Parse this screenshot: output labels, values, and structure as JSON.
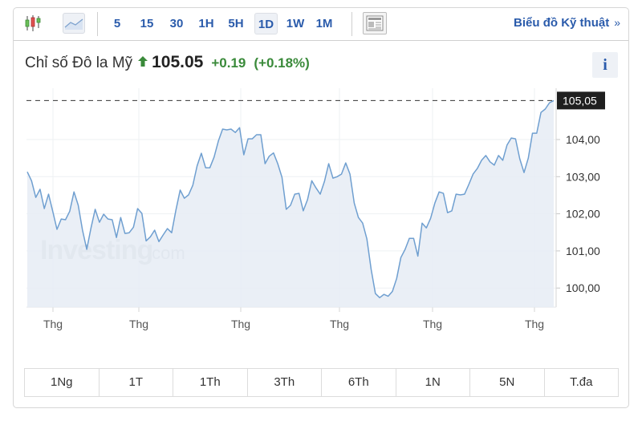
{
  "toolbar": {
    "chart_types": [
      {
        "name": "candlestick-icon",
        "active": false
      },
      {
        "name": "area-chart-icon",
        "active": true
      }
    ],
    "periods": [
      "5",
      "15",
      "30",
      "1H",
      "5H",
      "1D",
      "1W",
      "1M"
    ],
    "active_period": "1D",
    "layout_icon": "layout-icon",
    "technical_link": "Biểu đồ Kỹ thuật",
    "technical_chevron": "»"
  },
  "header": {
    "name": "Chỉ số Đô la Mỹ",
    "direction": "up",
    "price": "105.05",
    "change": "+0.19",
    "change_pct": "(+0.18%)",
    "info_label": "i"
  },
  "colors": {
    "accent": "#2a5bab",
    "positive": "#3a8a3a",
    "line": "#6f9fd0",
    "fill": "#e6ecf4",
    "last_price_bg": "#1f1f1f"
  },
  "watermark": {
    "brand": "Investing",
    "suffix": ".com"
  },
  "ranges": [
    "1Ng",
    "1T",
    "1Th",
    "3Th",
    "6Th",
    "1N",
    "5N",
    "T.đa"
  ],
  "chart_data": {
    "type": "area",
    "title": "Chỉ số Đô la Mỹ",
    "xlabel": "",
    "ylabel": "",
    "x_tick_labels": [
      "Thg",
      "Thg",
      "Thg",
      "Thg",
      "Thg",
      "Thg"
    ],
    "y_tick_labels": [
      "104,00",
      "103,00",
      "102,00",
      "101,00",
      "100,00"
    ],
    "y_ticks": [
      104,
      103,
      102,
      101,
      100
    ],
    "ylim": [
      99.45,
      105.6
    ],
    "grid": true,
    "last_value": 105.05,
    "last_value_label": "105,05",
    "values": [
      103.13,
      102.89,
      102.44,
      102.66,
      102.14,
      102.53,
      102.07,
      101.58,
      101.86,
      101.84,
      102.07,
      102.59,
      102.23,
      101.56,
      101.04,
      101.62,
      102.12,
      101.77,
      101.99,
      101.86,
      101.84,
      101.36,
      101.9,
      101.47,
      101.49,
      101.64,
      102.14,
      102.01,
      101.27,
      101.38,
      101.56,
      101.25,
      101.43,
      101.6,
      101.49,
      102.1,
      102.64,
      102.42,
      102.51,
      102.77,
      103.29,
      103.63,
      103.24,
      103.24,
      103.53,
      103.96,
      104.28,
      104.26,
      104.28,
      104.19,
      104.32,
      103.59,
      104.02,
      104.02,
      104.13,
      104.13,
      103.35,
      103.55,
      103.64,
      103.35,
      102.98,
      102.12,
      102.23,
      102.53,
      102.55,
      102.08,
      102.38,
      102.89,
      102.7,
      102.53,
      102.87,
      103.35,
      102.96,
      103.0,
      103.07,
      103.37,
      103.07,
      102.29,
      101.9,
      101.75,
      101.32,
      100.5,
      99.85,
      99.74,
      99.83,
      99.78,
      99.91,
      100.26,
      100.82,
      101.04,
      101.34,
      101.34,
      100.86,
      101.75,
      101.62,
      101.88,
      102.29,
      102.59,
      102.55,
      102.03,
      102.08,
      102.53,
      102.51,
      102.53,
      102.79,
      103.07,
      103.22,
      103.44,
      103.57,
      103.4,
      103.31,
      103.57,
      103.44,
      103.85,
      104.04,
      104.02,
      103.48,
      103.11,
      103.5,
      104.17,
      104.17,
      104.73,
      104.82,
      104.99,
      105.05
    ]
  }
}
